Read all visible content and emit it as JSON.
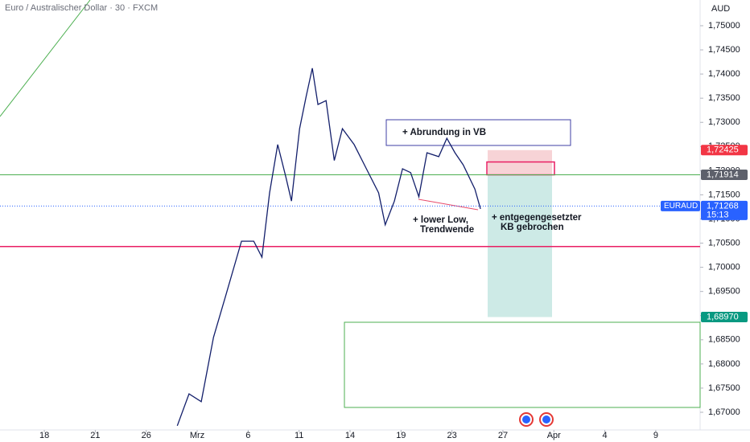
{
  "chart_data": {
    "type": "line",
    "title": "Euro / Australischer Dollar · 30 · FXCM",
    "currency": "AUD",
    "symbol": "EURAUD",
    "countdown": "15:13",
    "series": [
      {
        "name": "EURAUD",
        "color": "#131f6b",
        "x": [
          2.61,
          2.84,
          3.08,
          3.32,
          3.55,
          3.87,
          4.11,
          4.27,
          4.42,
          4.58,
          4.74,
          4.85,
          5.01,
          5.14,
          5.26,
          5.37,
          5.53,
          5.69,
          5.85,
          6.08,
          6.32,
          6.56,
          6.69,
          6.87,
          7.03,
          7.19,
          7.35,
          7.51,
          7.74,
          7.9,
          8.06,
          8.22,
          8.45,
          8.56
        ],
        "values": [
          1.6672,
          1.6738,
          1.6722,
          1.6855,
          1.6938,
          1.7054,
          1.7054,
          1.7021,
          1.7154,
          1.7254,
          1.7187,
          1.7137,
          1.7287,
          1.7354,
          1.7412,
          1.7337,
          1.7345,
          1.7221,
          1.7287,
          1.7254,
          1.7204,
          1.7154,
          1.7088,
          1.7137,
          1.7204,
          1.7196,
          1.7146,
          1.7237,
          1.7229,
          1.7267,
          1.7237,
          1.7212,
          1.7162,
          1.7121
        ]
      }
    ],
    "xlim": [
      -0.87,
      12.87
    ],
    "xticks": [
      {
        "value": 0,
        "label": "18"
      },
      {
        "value": 1,
        "label": "21"
      },
      {
        "value": 2,
        "label": "26"
      },
      {
        "value": 3,
        "label": "Mrz"
      },
      {
        "value": 4,
        "label": "6"
      },
      {
        "value": 5,
        "label": "11"
      },
      {
        "value": 6,
        "label": "14"
      },
      {
        "value": 7,
        "label": "19"
      },
      {
        "value": 8,
        "label": "23"
      },
      {
        "value": 9,
        "label": "27"
      },
      {
        "value": 10,
        "label": "Apr"
      },
      {
        "value": 11,
        "label": "4"
      },
      {
        "value": 12,
        "label": "9"
      }
    ],
    "ylim": [
      1.66634,
      1.75532
    ],
    "yticks": [
      {
        "value": 1.67,
        "label": "1,67000"
      },
      {
        "value": 1.675,
        "label": "1,67500"
      },
      {
        "value": 1.68,
        "label": "1,68000"
      },
      {
        "value": 1.685,
        "label": "1,68500"
      },
      {
        "value": 1.69,
        "label": "1,69000"
      },
      {
        "value": 1.695,
        "label": "1,69500"
      },
      {
        "value": 1.7,
        "label": "1,70000"
      },
      {
        "value": 1.705,
        "label": "1,70500"
      },
      {
        "value": 1.71,
        "label": "1,71000"
      },
      {
        "value": 1.715,
        "label": "1,71500"
      },
      {
        "value": 1.72,
        "label": "1,72000"
      },
      {
        "value": 1.725,
        "label": "1,72500"
      },
      {
        "value": 1.73,
        "label": "1,73000"
      },
      {
        "value": 1.735,
        "label": "1,73500"
      },
      {
        "value": 1.74,
        "label": "1,74000"
      },
      {
        "value": 1.745,
        "label": "1,74500"
      },
      {
        "value": 1.75,
        "label": "1,75000"
      }
    ],
    "levels": [
      {
        "value": 1.72425,
        "label": "1,72425",
        "color": "#f23645"
      },
      {
        "value": 1.71914,
        "label": "1,71914",
        "color": "#5d606b"
      },
      {
        "value": 1.71268,
        "label": "1,71268",
        "color": "#2962ff"
      },
      {
        "value": 1.6897,
        "label": "1,68970",
        "color": "#089981"
      }
    ],
    "lines": [
      {
        "value": 1.7043,
        "color": "#e91e63"
      }
    ],
    "annotations": [
      "+ Abrundung in VB",
      "+ lower Low,",
      "Trendwende",
      "+ entgegengesetzter",
      "KB gebrochen"
    ]
  }
}
